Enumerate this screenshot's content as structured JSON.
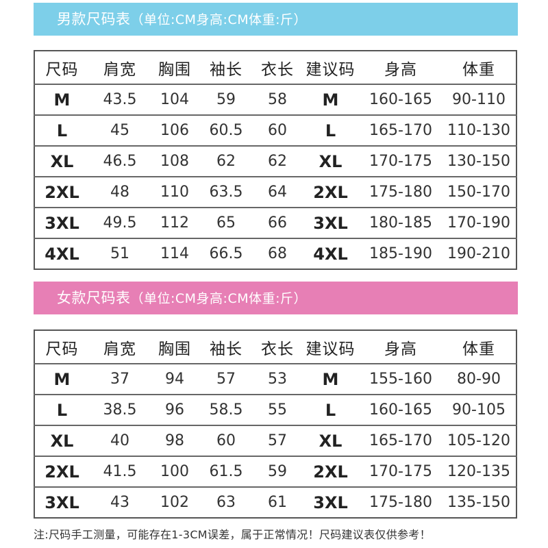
{
  "men": {
    "title": "男款尺码表",
    "unit": "（单位:CM身高:CM体重:斤）",
    "headers": [
      "尺码",
      "肩宽",
      "胸围",
      "袖长",
      "衣长",
      "建议码",
      "身高",
      "体重"
    ],
    "rows": [
      [
        "M",
        "43.5",
        "104",
        "59",
        "58",
        "M",
        "160-165",
        "90-110"
      ],
      [
        "L",
        "45",
        "106",
        "60.5",
        "60",
        "L",
        "165-170",
        "110-130"
      ],
      [
        "XL",
        "46.5",
        "108",
        "62",
        "62",
        "XL",
        "170-175",
        "130-150"
      ],
      [
        "2XL",
        "48",
        "110",
        "63.5",
        "64",
        "2XL",
        "175-180",
        "150-170"
      ],
      [
        "3XL",
        "49.5",
        "112",
        "65",
        "66",
        "3XL",
        "180-185",
        "170-190"
      ],
      [
        "4XL",
        "51",
        "114",
        "66.5",
        "68",
        "4XL",
        "185-190",
        "190-210"
      ]
    ],
    "header_color": "#7dcfe9"
  },
  "women": {
    "title": "女款尺码表",
    "unit": "（单位:CM身高:CM体重:斤）",
    "headers": [
      "尺码",
      "肩宽",
      "胸围",
      "袖长",
      "衣长",
      "建议码",
      "身高",
      "体重"
    ],
    "rows": [
      [
        "M",
        "37",
        "94",
        "57",
        "53",
        "M",
        "155-160",
        "80-90"
      ],
      [
        "L",
        "38.5",
        "96",
        "58.5",
        "55",
        "L",
        "160-165",
        "90-105"
      ],
      [
        "XL",
        "40",
        "98",
        "60",
        "57",
        "XL",
        "165-170",
        "105-120"
      ],
      [
        "2XL",
        "41.5",
        "100",
        "61.5",
        "59",
        "2XL",
        "170-175",
        "120-135"
      ],
      [
        "3XL",
        "43",
        "102",
        "63",
        "61",
        "3XL",
        "175-180",
        "135-150"
      ]
    ],
    "header_color": "#e77fb5"
  },
  "note": "注:尺码手工测量，可能存在1-3CM误差，属于正常情况！尺码建议表仅供参考！"
}
